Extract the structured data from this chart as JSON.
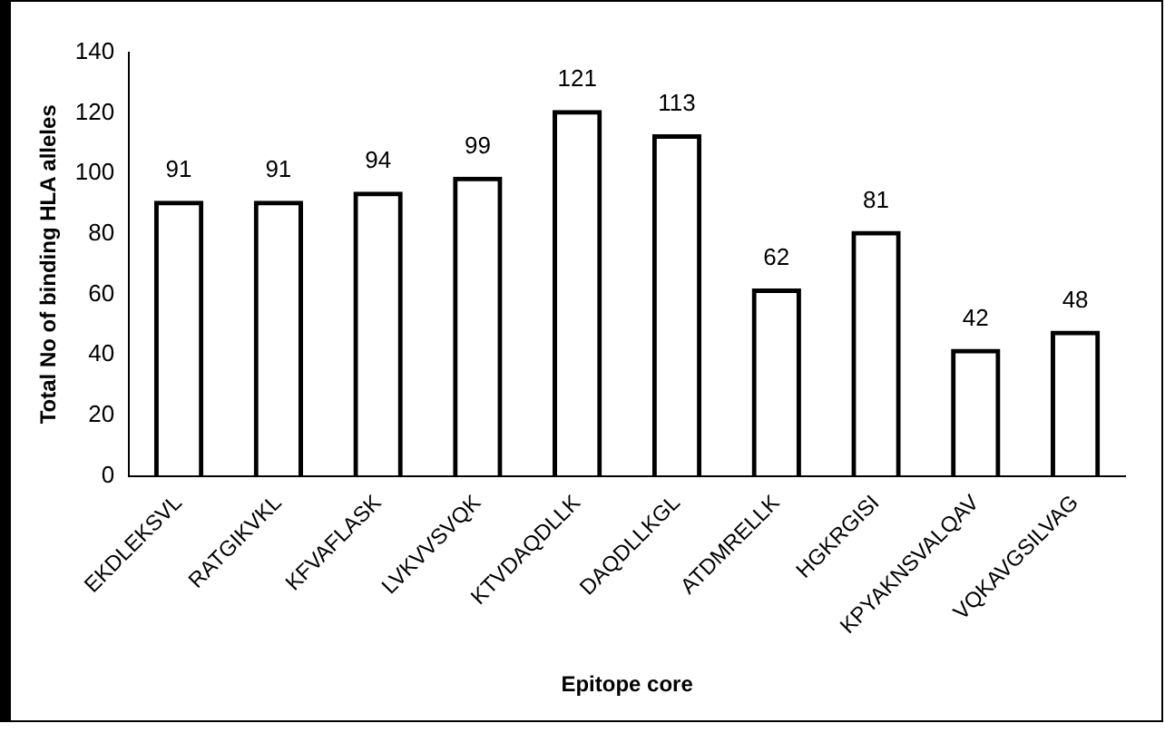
{
  "chart_data": {
    "type": "bar",
    "xlabel": "Epitope core",
    "ylabel": "Total No of binding HLA alleles",
    "categories": [
      "EKDLEKSVL",
      "RATGIKVKL",
      "KFVAFLASK",
      "LVKVVSVQK",
      "KTVDAQDLLK",
      "DAQDLLKGL",
      "ATDMRELLK",
      "HGKRGISI",
      "KPYAKNSVALQAV",
      "VQKAVGSILVAG"
    ],
    "values": [
      91,
      91,
      94,
      99,
      121,
      113,
      62,
      81,
      42,
      48
    ],
    "color": "#000000",
    "ylim": [
      0,
      140
    ],
    "yticks": [
      0,
      20,
      40,
      60,
      80,
      100,
      120,
      140
    ],
    "grid": false,
    "legend": false,
    "data_labels": true
  }
}
